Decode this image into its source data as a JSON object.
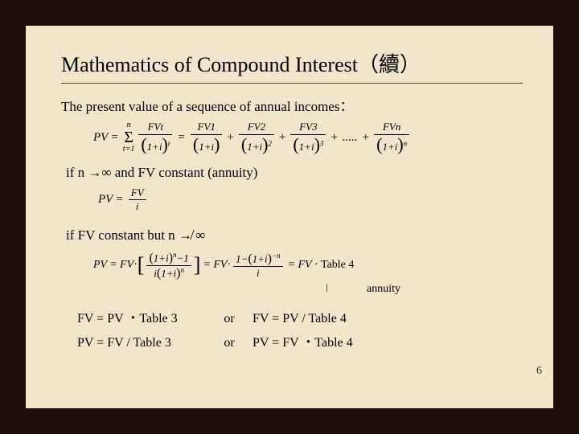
{
  "colors": {
    "frame": "#1a0f0a",
    "slide_bg": "#f0e6cc",
    "text": "#000000",
    "rule": "#504030",
    "pagenum": "#3a2a10"
  },
  "typography": {
    "title_fontsize": 26,
    "body_fontsize": 17,
    "formula_fontsize": 15,
    "font_family": "Times New Roman"
  },
  "title": "Mathematics of Compound Interest（續）",
  "intro": "The present value of a sequence of annual incomes：",
  "formula1": {
    "lhs": "PV",
    "sigma_upper": "n",
    "sigma_lower": "t=1",
    "term_num": "FVt",
    "term_den_base": "1+i",
    "term_den_exp": "t",
    "expansion": [
      {
        "num": "FV1",
        "den_base": "1+i",
        "exp": ""
      },
      {
        "num": "FV2",
        "den_base": "1+i",
        "exp": "2"
      },
      {
        "num": "FV3",
        "den_base": "1+i",
        "exp": "3"
      }
    ],
    "dots": ".....",
    "last": {
      "num": "FVn",
      "den_base": "1+i",
      "exp": "n"
    }
  },
  "cond1": "if  n →∞ and FV constant  (annuity)",
  "formula2": {
    "lhs": "PV",
    "num": "FV",
    "den": "i"
  },
  "cond2": "if  FV constant  but n ↛ ∞",
  "formula3": {
    "lhs": "PV",
    "fv": "FV",
    "part1_num_l": "1+i",
    "part1_num_exp": "n",
    "part1_num_tail": "−1",
    "part1_den_l": "i",
    "part1_den_base": "1+i",
    "part1_den_exp": "n",
    "part2_num_head": "1−",
    "part2_num_base": "1+i",
    "part2_num_exp": "−n",
    "part2_den": "i",
    "tail": "Table 4"
  },
  "annuity_label": "annuity",
  "bottom": {
    "r1c1": "FV = PV ・Table 3",
    "or": "or",
    "r1c2": "FV = PV /  Table 4",
    "r2c1": "PV = FV /  Table 3",
    "r2c2": "PV = FV ・Table 4"
  },
  "page_number": "6"
}
